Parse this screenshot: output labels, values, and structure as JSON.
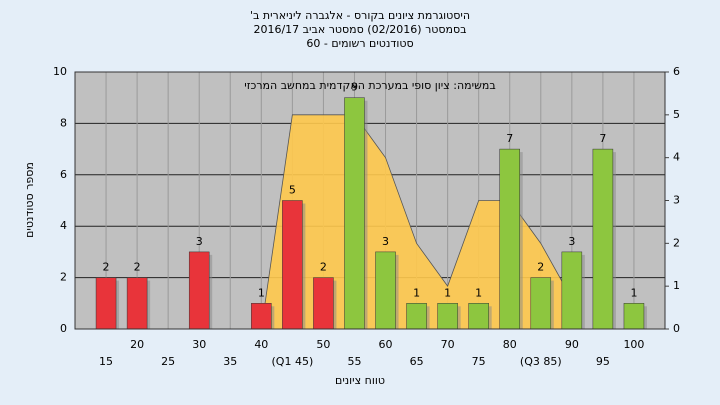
{
  "chart_data": {
    "type": "bar",
    "title": "היסטוגרמת ציונים בקורס - אלגברה ליניארית ב'",
    "subtitle": "בסמסטר (02/2016) סמסטר אביב 2016/17",
    "subtitle2": "סטודנטים רשומים - 60",
    "annotation": "במשימה: ציון סופי במערכת האקדמית במחשב המרכזי",
    "xlabel": "טווח ציונים",
    "ylabel": "מספר סטודנטים",
    "x": [
      15,
      20,
      30,
      40,
      45,
      50,
      55,
      60,
      65,
      70,
      75,
      80,
      85,
      90,
      95,
      100
    ],
    "values": [
      2,
      2,
      3,
      1,
      5,
      2,
      9,
      3,
      1,
      1,
      1,
      7,
      2,
      3,
      7,
      1
    ],
    "colors": [
      "#e8343a",
      "#e8343a",
      "#e8343a",
      "#e8343a",
      "#e8343a",
      "#e8343a",
      "#8dc63f",
      "#8dc63f",
      "#8dc63f",
      "#8dc63f",
      "#8dc63f",
      "#8dc63f",
      "#8dc63f",
      "#8dc63f",
      "#8dc63f",
      "#8dc63f"
    ],
    "area": {
      "x": [
        40,
        45,
        50,
        55,
        60,
        65,
        70,
        75,
        80,
        85,
        90
      ],
      "values": [
        0,
        5,
        5,
        5,
        4,
        2,
        1,
        3,
        3,
        2,
        0.7
      ],
      "color": "#ffc94d",
      "axis": "y2"
    },
    "xlim": [
      10,
      105
    ],
    "xticks": [
      15,
      20,
      25,
      30,
      35,
      40,
      {
        "value": 45,
        "label": "(Q1 45)"
      },
      50,
      55,
      60,
      65,
      70,
      75,
      80,
      {
        "value": 85,
        "label": "(Q3 85)"
      },
      90,
      95,
      100
    ],
    "ylim": [
      0,
      10
    ],
    "yticks": [
      0,
      2,
      4,
      6,
      8,
      10
    ],
    "y2lim": [
      0,
      6
    ],
    "y2ticks": [
      0,
      1,
      2,
      3,
      4,
      5,
      6
    ],
    "grid": true
  }
}
